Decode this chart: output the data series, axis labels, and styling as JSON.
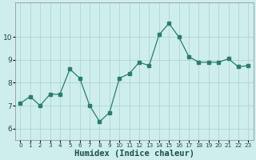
{
  "x": [
    0,
    1,
    2,
    3,
    4,
    5,
    6,
    7,
    8,
    9,
    10,
    11,
    12,
    13,
    14,
    15,
    16,
    17,
    18,
    19,
    20,
    21,
    22,
    23
  ],
  "y": [
    7.1,
    7.4,
    7.0,
    7.5,
    7.5,
    8.6,
    8.2,
    7.0,
    6.3,
    6.7,
    8.2,
    8.4,
    8.9,
    8.75,
    10.1,
    10.6,
    10.0,
    9.15,
    8.9,
    8.9,
    8.9,
    9.05,
    8.7,
    8.75
  ],
  "xlabel": "Humidex (Indice chaleur)",
  "ylim": [
    5.5,
    11.5
  ],
  "xlim": [
    -0.5,
    23.5
  ],
  "yticks": [
    6,
    7,
    8,
    9,
    10
  ],
  "xtick_labels": [
    "0",
    "1",
    "2",
    "3",
    "4",
    "5",
    "6",
    "7",
    "8",
    "9",
    "1011",
    "1213",
    "1415",
    "1617",
    "1819",
    "2021",
    "2223"
  ],
  "line_color": "#2a7d6e",
  "marker_color": "#2a7d6e",
  "bg_plot": "#ceeeed",
  "bg_fig": "#ceeeed",
  "grid_color": "#aed4d2",
  "xlabel_fontsize": 7.5,
  "tick_fontsize": 6.5,
  "ylabel_fontsize": 6.5
}
